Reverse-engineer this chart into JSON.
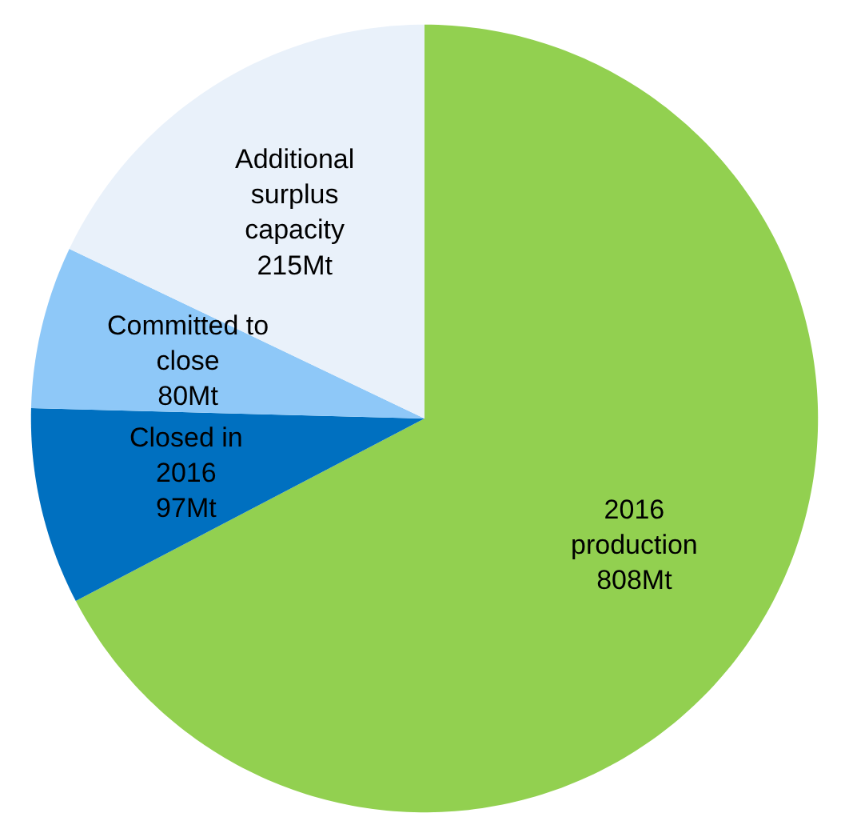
{
  "chart_data": {
    "type": "pie",
    "categories": [
      "2016\nproduction",
      "Closed in\n2016",
      "Committed to\nclose",
      "Additional\nsurplus\ncapacity"
    ],
    "values": [
      808,
      97,
      80,
      215
    ],
    "value_labels": [
      "808Mt",
      "97Mt",
      "80Mt",
      "215Mt"
    ],
    "colors": [
      "#92d050",
      "#0070c0",
      "#8ec8f8",
      "#e9f1fa"
    ],
    "legend": false
  }
}
